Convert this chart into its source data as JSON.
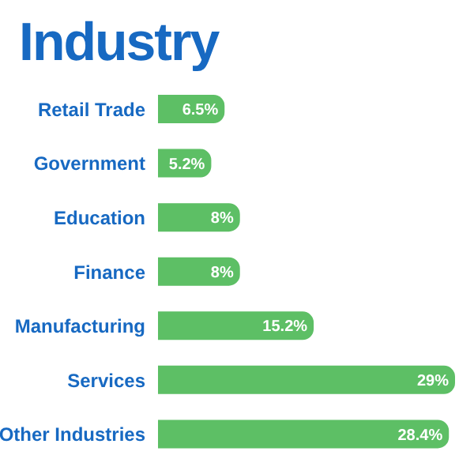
{
  "chart_data": {
    "type": "bar",
    "title": "Industry",
    "orientation": "horizontal",
    "relative": false,
    "categories": [
      "Retail Trade",
      "Government",
      "Education",
      "Finance",
      "Manufacturing",
      "Services",
      "Other Industries"
    ],
    "values": [
      6.5,
      5.2,
      8,
      8,
      15.2,
      29,
      28.4
    ],
    "value_labels": [
      "6.5%",
      "5.2%",
      "8%",
      "8%",
      "15.2%",
      "29%",
      "28.4%"
    ],
    "color": "#5dbf65",
    "legend": false,
    "grid": false
  }
}
